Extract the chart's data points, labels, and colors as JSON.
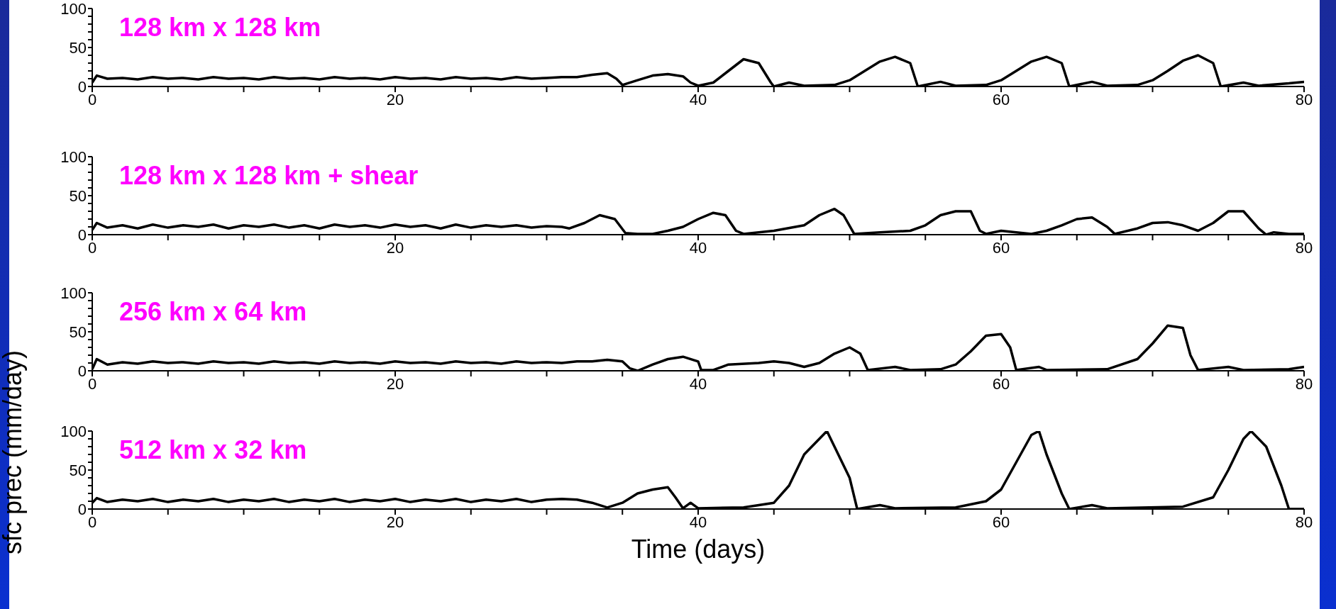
{
  "chart_data": [
    {
      "type": "line",
      "annotations": [
        "128 km x 128 km"
      ],
      "xlim": [
        0,
        80
      ],
      "ylim": [
        0,
        100
      ],
      "xticks": [
        0,
        {
          "value": 5,
          "label": null
        },
        {
          "value": 10,
          "label": null
        },
        {
          "value": 15,
          "label": null
        },
        20,
        {
          "value": 25,
          "label": null
        },
        {
          "value": 30,
          "label": null
        },
        {
          "value": 35,
          "label": null
        },
        40,
        {
          "value": 45,
          "label": null
        },
        {
          "value": 50,
          "label": null
        },
        {
          "value": 55,
          "label": null
        },
        60,
        {
          "value": 65,
          "label": null
        },
        {
          "value": 70,
          "label": null
        },
        {
          "value": 75,
          "label": null
        },
        80
      ],
      "yticks": [
        0,
        {
          "value": 10,
          "label": null
        },
        {
          "value": 20,
          "label": null
        },
        {
          "value": 30,
          "label": null
        },
        {
          "value": 40,
          "label": null
        },
        50,
        {
          "value": 60,
          "label": null
        },
        {
          "value": 70,
          "label": null
        },
        {
          "value": 80,
          "label": null
        },
        {
          "value": 90,
          "label": null
        },
        100
      ],
      "series": [
        {
          "color": "#000000",
          "x": [
            0,
            0.3,
            1,
            2,
            3,
            4,
            5,
            6,
            7,
            8,
            9,
            10,
            11,
            12,
            13,
            14,
            15,
            16,
            17,
            18,
            19,
            20,
            21,
            22,
            23,
            24,
            25,
            26,
            27,
            28,
            29,
            30,
            31,
            32,
            33,
            34,
            34.6,
            35,
            36,
            37,
            38,
            39,
            39.5,
            40,
            41,
            42,
            43,
            44,
            44.8,
            45,
            46,
            47,
            49,
            50,
            51,
            52,
            53,
            54,
            54.5,
            56,
            57,
            59,
            60,
            61,
            62,
            63,
            64,
            64.5,
            66,
            67,
            69,
            70,
            71,
            72,
            73,
            74,
            74.5,
            76,
            77,
            79,
            80
          ],
          "values": [
            5,
            14,
            10,
            11,
            9,
            12,
            10,
            11,
            9,
            12,
            10,
            11,
            9,
            12,
            10,
            11,
            9,
            12,
            10,
            11,
            9,
            12,
            10,
            11,
            9,
            12,
            10,
            11,
            9,
            12,
            10,
            11,
            12,
            12,
            15,
            17,
            10,
            2,
            8,
            14,
            16,
            13,
            5,
            1,
            5,
            20,
            35,
            30,
            5,
            0,
            5,
            1,
            2,
            8,
            20,
            32,
            38,
            30,
            0,
            6,
            1,
            2,
            8,
            20,
            32,
            38,
            30,
            0,
            6,
            1,
            2,
            8,
            20,
            33,
            40,
            30,
            0,
            5,
            1,
            4,
            6
          ]
        }
      ]
    },
    {
      "type": "line",
      "annotations": [
        "128 km x 128 km + shear"
      ],
      "xlim": [
        0,
        80
      ],
      "ylim": [
        0,
        100
      ],
      "xticks": [
        0,
        {
          "value": 5,
          "label": null
        },
        {
          "value": 10,
          "label": null
        },
        {
          "value": 15,
          "label": null
        },
        20,
        {
          "value": 25,
          "label": null
        },
        {
          "value": 30,
          "label": null
        },
        {
          "value": 35,
          "label": null
        },
        40,
        {
          "value": 45,
          "label": null
        },
        {
          "value": 50,
          "label": null
        },
        {
          "value": 55,
          "label": null
        },
        60,
        {
          "value": 65,
          "label": null
        },
        {
          "value": 70,
          "label": null
        },
        {
          "value": 75,
          "label": null
        },
        80
      ],
      "yticks": [
        0,
        {
          "value": 10,
          "label": null
        },
        {
          "value": 20,
          "label": null
        },
        {
          "value": 30,
          "label": null
        },
        {
          "value": 40,
          "label": null
        },
        50,
        {
          "value": 60,
          "label": null
        },
        {
          "value": 70,
          "label": null
        },
        {
          "value": 80,
          "label": null
        },
        {
          "value": 90,
          "label": null
        },
        100
      ],
      "series": [
        {
          "color": "#000000",
          "x": [
            0,
            0.3,
            1,
            2,
            3,
            4,
            5,
            6,
            7,
            8,
            9,
            10,
            11,
            12,
            13,
            14,
            15,
            16,
            17,
            18,
            19,
            20,
            21,
            22,
            23,
            24,
            25,
            26,
            27,
            28,
            29,
            30,
            31,
            31.5,
            32.5,
            33.5,
            34.5,
            35.2,
            36,
            37,
            38,
            39,
            40,
            41,
            41.8,
            42.5,
            43,
            45,
            47,
            48,
            49,
            49.6,
            50.3,
            52,
            54,
            55,
            56,
            57,
            58,
            58.6,
            59,
            60,
            61,
            62,
            63,
            64,
            65,
            66,
            67,
            67.5,
            69,
            70,
            71,
            72,
            73,
            74,
            75,
            76,
            77,
            77.5,
            78,
            79,
            80
          ],
          "values": [
            6,
            15,
            9,
            12,
            8,
            13,
            9,
            12,
            10,
            13,
            8,
            12,
            10,
            13,
            9,
            12,
            8,
            13,
            10,
            12,
            9,
            13,
            10,
            12,
            8,
            13,
            9,
            12,
            10,
            12,
            9,
            11,
            10,
            8,
            15,
            25,
            20,
            2,
            1,
            1,
            5,
            10,
            20,
            28,
            25,
            5,
            1,
            5,
            12,
            25,
            33,
            25,
            1,
            3,
            5,
            12,
            25,
            30,
            30,
            5,
            1,
            5,
            3,
            1,
            5,
            12,
            20,
            22,
            10,
            1,
            8,
            15,
            16,
            12,
            5,
            15,
            30,
            30,
            8,
            0,
            3,
            1,
            1
          ]
        }
      ]
    },
    {
      "type": "line",
      "annotations": [
        "256 km x 64 km"
      ],
      "xlim": [
        0,
        80
      ],
      "ylim": [
        0,
        100
      ],
      "xticks": [
        0,
        {
          "value": 5,
          "label": null
        },
        {
          "value": 10,
          "label": null
        },
        {
          "value": 15,
          "label": null
        },
        20,
        {
          "value": 25,
          "label": null
        },
        {
          "value": 30,
          "label": null
        },
        {
          "value": 35,
          "label": null
        },
        40,
        {
          "value": 45,
          "label": null
        },
        {
          "value": 50,
          "label": null
        },
        {
          "value": 55,
          "label": null
        },
        60,
        {
          "value": 65,
          "label": null
        },
        {
          "value": 70,
          "label": null
        },
        {
          "value": 75,
          "label": null
        },
        80
      ],
      "yticks": [
        0,
        {
          "value": 10,
          "label": null
        },
        {
          "value": 20,
          "label": null
        },
        {
          "value": 30,
          "label": null
        },
        {
          "value": 40,
          "label": null
        },
        50,
        {
          "value": 60,
          "label": null
        },
        {
          "value": 70,
          "label": null
        },
        {
          "value": 80,
          "label": null
        },
        {
          "value": 90,
          "label": null
        },
        100
      ],
      "series": [
        {
          "color": "#000000",
          "x": [
            0,
            0.3,
            1,
            2,
            3,
            4,
            5,
            6,
            7,
            8,
            9,
            10,
            11,
            12,
            13,
            14,
            15,
            16,
            17,
            18,
            19,
            20,
            21,
            22,
            23,
            24,
            25,
            26,
            27,
            28,
            29,
            30,
            31,
            32,
            33,
            34,
            35,
            35.5,
            36,
            37,
            38,
            39,
            40,
            40.2,
            41,
            42,
            44,
            45,
            46,
            47,
            48,
            49,
            50,
            50.7,
            51.2,
            53,
            54,
            56,
            57,
            58,
            59,
            60,
            60.6,
            61,
            62.5,
            63,
            67,
            69,
            70,
            71,
            72,
            72.5,
            73,
            75,
            76,
            79,
            80
          ],
          "values": [
            2,
            15,
            8,
            11,
            9,
            12,
            10,
            11,
            9,
            12,
            10,
            11,
            9,
            12,
            10,
            11,
            9,
            12,
            10,
            11,
            9,
            12,
            10,
            11,
            9,
            12,
            10,
            11,
            9,
            12,
            10,
            11,
            10,
            12,
            12,
            14,
            12,
            3,
            0,
            8,
            15,
            18,
            12,
            1,
            1,
            8,
            10,
            12,
            10,
            5,
            10,
            22,
            30,
            22,
            1,
            5,
            1,
            2,
            8,
            25,
            45,
            47,
            30,
            1,
            5,
            1,
            2,
            15,
            35,
            58,
            55,
            20,
            1,
            5,
            1,
            2,
            5
          ]
        }
      ]
    },
    {
      "type": "line",
      "annotations": [
        "512 km x 32 km"
      ],
      "xlabel": "Time (days)",
      "ylabel": "sfc prec (mm/day)",
      "xlim": [
        0,
        80
      ],
      "ylim": [
        0,
        100
      ],
      "xticks": [
        0,
        {
          "value": 5,
          "label": null
        },
        {
          "value": 10,
          "label": null
        },
        {
          "value": 15,
          "label": null
        },
        20,
        {
          "value": 25,
          "label": null
        },
        {
          "value": 30,
          "label": null
        },
        {
          "value": 35,
          "label": null
        },
        40,
        {
          "value": 45,
          "label": null
        },
        {
          "value": 50,
          "label": null
        },
        {
          "value": 55,
          "label": null
        },
        60,
        {
          "value": 65,
          "label": null
        },
        {
          "value": 70,
          "label": null
        },
        {
          "value": 75,
          "label": null
        },
        80
      ],
      "yticks": [
        0,
        {
          "value": 10,
          "label": null
        },
        {
          "value": 20,
          "label": null
        },
        {
          "value": 30,
          "label": null
        },
        {
          "value": 40,
          "label": null
        },
        50,
        {
          "value": 60,
          "label": null
        },
        {
          "value": 70,
          "label": null
        },
        {
          "value": 80,
          "label": null
        },
        {
          "value": 90,
          "label": null
        },
        100
      ],
      "series": [
        {
          "color": "#000000",
          "x": [
            0,
            0.3,
            1,
            2,
            3,
            4,
            5,
            6,
            7,
            8,
            9,
            10,
            11,
            12,
            13,
            14,
            15,
            16,
            17,
            18,
            19,
            20,
            21,
            22,
            23,
            24,
            25,
            26,
            27,
            28,
            29,
            30,
            31,
            32,
            33,
            34,
            35,
            36,
            37,
            38,
            38.5,
            39,
            39.5,
            40,
            43,
            45,
            46,
            47,
            48,
            48.5,
            49,
            50,
            50.5,
            52,
            53,
            57,
            59,
            60,
            61,
            62,
            62.5,
            63,
            64,
            64.5,
            66,
            67,
            72,
            74,
            75,
            76,
            76.5,
            77.5,
            78.5,
            79,
            80
          ],
          "values": [
            8,
            14,
            9,
            12,
            10,
            13,
            9,
            12,
            10,
            13,
            9,
            12,
            10,
            13,
            9,
            12,
            10,
            13,
            9,
            12,
            10,
            13,
            9,
            12,
            10,
            13,
            9,
            12,
            10,
            13,
            9,
            12,
            13,
            12,
            8,
            2,
            8,
            20,
            25,
            28,
            15,
            1,
            8,
            1,
            2,
            8,
            30,
            70,
            90,
            100,
            80,
            40,
            0,
            5,
            1,
            2,
            10,
            25,
            60,
            95,
            100,
            70,
            20,
            0,
            5,
            1,
            3,
            15,
            50,
            90,
            100,
            80,
            30,
            0,
            0
          ]
        }
      ]
    }
  ]
}
